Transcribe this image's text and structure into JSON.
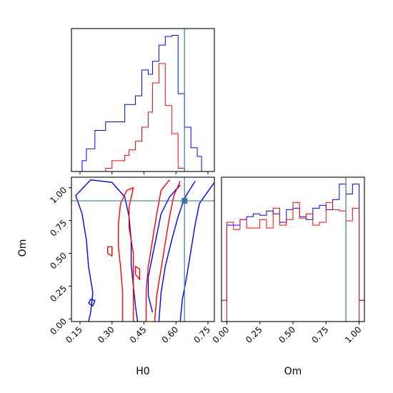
{
  "chart_data": {
    "type": "corner",
    "parameters": [
      "H0",
      "Om"
    ],
    "truth": {
      "H0": 0.64,
      "Om": 0.9
    },
    "colors": {
      "truth": "#3b78a8"
    },
    "series": [
      {
        "color": "#0000ff"
      },
      {
        "color": "#ff0000"
      }
    ],
    "panels": [
      {
        "id": "hist-H0",
        "type": "histogram",
        "xlim": [
          0.11,
          0.78
        ],
        "bin_edges": [
          0.11,
          0.16,
          0.18,
          0.22,
          0.27,
          0.3,
          0.36,
          0.38,
          0.41,
          0.44,
          0.47,
          0.49,
          0.52,
          0.55,
          0.58,
          0.61,
          0.64,
          0.67,
          0.7,
          0.72,
          0.75,
          0.78
        ],
        "series_values": [
          [
            0.0,
            0.1,
            0.21,
            0.38,
            0.46,
            0.46,
            0.62,
            0.62,
            0.7,
            0.94,
            0.9,
            1.02,
            1.17,
            1.25,
            1.26,
            0.72,
            0.41,
            0.22,
            0.14,
            0.0,
            0.0
          ],
          [
            0.0,
            0.0,
            0.0,
            0.0,
            0.03,
            0.1,
            0.15,
            0.2,
            0.28,
            0.41,
            0.55,
            0.82,
            1.0,
            0.61,
            0.35,
            0.03,
            0.0,
            0.0,
            0.0,
            0.0,
            0.0
          ]
        ],
        "xticks": [
          0.15,
          0.3,
          0.45,
          0.6,
          0.75
        ]
      },
      {
        "id": "scatter-H0-Om",
        "type": "contour",
        "xlabel": "H0",
        "ylabel": "Om",
        "xlim": [
          0.11,
          0.78
        ],
        "ylim": [
          -0.02,
          1.08
        ],
        "xticks": [
          "0.15",
          "0.30",
          "0.45",
          "0.60",
          "0.75"
        ],
        "yticks": [
          "0.00",
          "0.25",
          "0.50",
          "0.75",
          "1.00"
        ],
        "contours": [
          {
            "series": 0,
            "points": [
              [
                0.42,
                -0.02
              ],
              [
                0.41,
                0.1
              ],
              [
                0.4,
                0.25
              ],
              [
                0.39,
                0.42
              ],
              [
                0.39,
                0.6
              ],
              [
                0.38,
                0.78
              ],
              [
                0.36,
                0.93
              ],
              [
                0.3,
                1.04
              ],
              [
                0.2,
                1.06
              ],
              [
                0.13,
                0.94
              ],
              [
                0.16,
                0.8
              ],
              [
                0.18,
                0.6
              ],
              [
                0.19,
                0.4
              ],
              [
                0.21,
                0.2
              ],
              [
                0.2,
                0.05
              ],
              [
                0.19,
                -0.02
              ]
            ]
          },
          {
            "series": 0,
            "points": [
              [
                0.62,
                -0.02
              ],
              [
                0.63,
                0.15
              ],
              [
                0.65,
                0.32
              ],
              [
                0.67,
                0.52
              ],
              [
                0.69,
                0.72
              ],
              [
                0.71,
                0.88
              ],
              [
                0.78,
                1.04
              ]
            ]
          },
          {
            "series": 0,
            "points": [
              [
                0.52,
                -0.02
              ],
              [
                0.53,
                0.2
              ],
              [
                0.55,
                0.4
              ],
              [
                0.58,
                0.6
              ],
              [
                0.61,
                0.78
              ],
              [
                0.64,
                0.92
              ],
              [
                0.69,
                1.05
              ]
            ]
          },
          {
            "series": 0,
            "points": [
              [
                0.49,
                0.05
              ],
              [
                0.47,
                0.18
              ],
              [
                0.47,
                0.32
              ],
              [
                0.49,
                0.48
              ],
              [
                0.51,
                0.64
              ],
              [
                0.53,
                0.8
              ],
              [
                0.57,
                0.93
              ],
              [
                0.62,
                1.02
              ]
            ]
          },
          {
            "series": 0,
            "points": [
              [
                0.19,
                0.12
              ],
              [
                0.21,
                0.1
              ],
              [
                0.22,
                0.14
              ],
              [
                0.2,
                0.15
              ],
              [
                0.19,
                0.12
              ]
            ]
          },
          {
            "series": 1,
            "points": [
              [
                0.35,
                -0.02
              ],
              [
                0.35,
                0.2
              ],
              [
                0.34,
                0.4
              ],
              [
                0.33,
                0.55
              ],
              [
                0.33,
                0.72
              ],
              [
                0.34,
                0.88
              ],
              [
                0.37,
                0.98
              ],
              [
                0.4,
                1.0
              ],
              [
                0.38,
                0.85
              ],
              [
                0.38,
                0.7
              ],
              [
                0.4,
                0.5
              ],
              [
                0.4,
                0.3
              ],
              [
                0.4,
                0.1
              ],
              [
                0.4,
                -0.02
              ]
            ]
          },
          {
            "series": 1,
            "points": [
              [
                0.46,
                -0.02
              ],
              [
                0.46,
                0.2
              ],
              [
                0.47,
                0.4
              ],
              [
                0.49,
                0.6
              ],
              [
                0.51,
                0.8
              ],
              [
                0.53,
                0.98
              ],
              [
                0.57,
                1.06
              ]
            ]
          },
          {
            "series": 1,
            "points": [
              [
                0.5,
                -0.02
              ],
              [
                0.51,
                0.18
              ],
              [
                0.53,
                0.38
              ],
              [
                0.55,
                0.58
              ],
              [
                0.57,
                0.78
              ],
              [
                0.59,
                0.94
              ],
              [
                0.62,
                1.05
              ]
            ]
          },
          {
            "series": 1,
            "points": [
              [
                0.28,
                0.5
              ],
              [
                0.3,
                0.48
              ],
              [
                0.3,
                0.55
              ],
              [
                0.28,
                0.55
              ],
              [
                0.28,
                0.5
              ]
            ]
          },
          {
            "series": 1,
            "points": [
              [
                0.41,
                0.34
              ],
              [
                0.43,
                0.3
              ],
              [
                0.43,
                0.38
              ],
              [
                0.41,
                0.4
              ],
              [
                0.41,
                0.34
              ]
            ]
          }
        ]
      },
      {
        "id": "hist-Om",
        "type": "histogram",
        "xlabel": "Om",
        "xlim": [
          -0.04,
          1.04
        ],
        "xticks": [
          "0.00",
          "0.25",
          "0.50",
          "0.75",
          "1.00"
        ],
        "bin_edges": [
          -0.04,
          0.0,
          0.05,
          0.1,
          0.15,
          0.2,
          0.25,
          0.3,
          0.35,
          0.4,
          0.45,
          0.5,
          0.55,
          0.6,
          0.65,
          0.7,
          0.75,
          0.8,
          0.85,
          0.9,
          0.95,
          1.0,
          1.04
        ],
        "series_values": [
          [
            0.15,
            0.68,
            0.68,
            0.72,
            0.74,
            0.76,
            0.75,
            0.78,
            0.76,
            0.7,
            0.79,
            0.8,
            0.74,
            0.72,
            0.8,
            0.82,
            0.79,
            0.86,
            0.97,
            0.9,
            0.97,
            0.15
          ],
          [
            0.0,
            0.7,
            0.65,
            0.72,
            0.66,
            0.66,
            0.72,
            0.66,
            0.8,
            0.68,
            0.72,
            0.84,
            0.73,
            0.76,
            0.68,
            0.7,
            0.84,
            0.79,
            0.78,
            0.71,
            0.8,
            0.0
          ]
        ]
      }
    ]
  }
}
